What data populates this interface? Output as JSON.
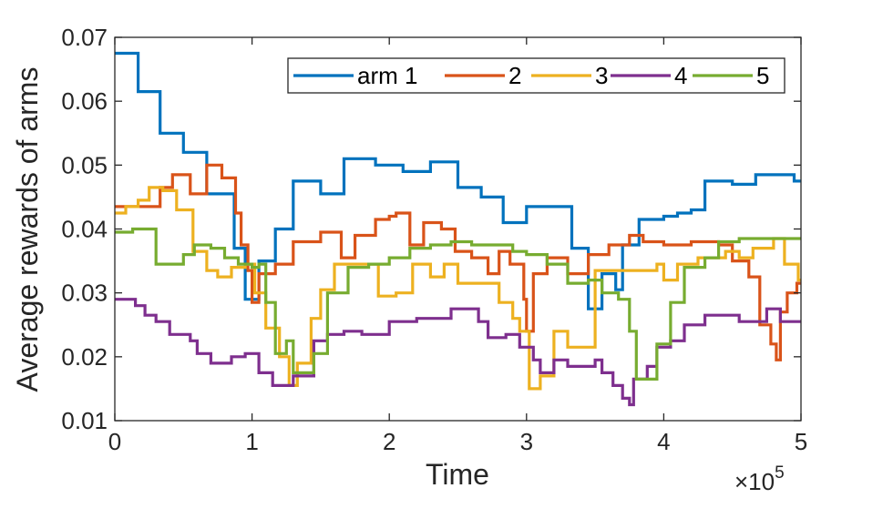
{
  "chart_data": {
    "type": "line",
    "step": true,
    "xlabel": "Time",
    "ylabel": "Average rewards of arms",
    "x_multiplier": "×10",
    "x_multiplier_exp": "5",
    "xlim": [
      0,
      5
    ],
    "ylim": [
      0.01,
      0.07
    ],
    "xticks": [
      0,
      1,
      2,
      3,
      4,
      5
    ],
    "xtick_labels": [
      "0",
      "1",
      "2",
      "3",
      "4",
      "5"
    ],
    "yticks": [
      0.01,
      0.02,
      0.03,
      0.04,
      0.05,
      0.06,
      0.07
    ],
    "ytick_labels": [
      "0.01",
      "0.02",
      "0.03",
      "0.04",
      "0.05",
      "0.06",
      "0.07"
    ],
    "grid": false,
    "legend_position": "top-right",
    "legend_orientation": "horizontal",
    "series": [
      {
        "name": "arm 1",
        "color": "#0072BD",
        "points": [
          [
            0,
            0.0675
          ],
          [
            0.17,
            0.0615
          ],
          [
            0.33,
            0.055
          ],
          [
            0.5,
            0.052
          ],
          [
            0.67,
            0.0455
          ],
          [
            0.87,
            0.037
          ],
          [
            0.95,
            0.029
          ],
          [
            1.05,
            0.035
          ],
          [
            1.17,
            0.04
          ],
          [
            1.3,
            0.0475
          ],
          [
            1.5,
            0.0455
          ],
          [
            1.67,
            0.051
          ],
          [
            1.9,
            0.05
          ],
          [
            2.1,
            0.049
          ],
          [
            2.3,
            0.0505
          ],
          [
            2.5,
            0.0465
          ],
          [
            2.67,
            0.045
          ],
          [
            2.83,
            0.041
          ],
          [
            3.0,
            0.0435
          ],
          [
            3.33,
            0.037
          ],
          [
            3.45,
            0.0275
          ],
          [
            3.55,
            0.033
          ],
          [
            3.65,
            0.0305
          ],
          [
            3.7,
            0.0375
          ],
          [
            3.82,
            0.0415
          ],
          [
            4.0,
            0.042
          ],
          [
            4.1,
            0.0425
          ],
          [
            4.2,
            0.043
          ],
          [
            4.3,
            0.0475
          ],
          [
            4.5,
            0.047
          ],
          [
            4.67,
            0.0485
          ],
          [
            4.95,
            0.0475
          ]
        ],
        "end_x": 5.0
      },
      {
        "name": "2",
        "color": "#D95319",
        "points": [
          [
            0,
            0.0435
          ],
          [
            0.33,
            0.0465
          ],
          [
            0.42,
            0.0485
          ],
          [
            0.55,
            0.0455
          ],
          [
            0.67,
            0.05
          ],
          [
            0.78,
            0.048
          ],
          [
            0.88,
            0.0425
          ],
          [
            0.92,
            0.0375
          ],
          [
            0.97,
            0.0335
          ],
          [
            1.0,
            0.0285
          ],
          [
            1.05,
            0.033
          ],
          [
            1.17,
            0.0345
          ],
          [
            1.3,
            0.038
          ],
          [
            1.5,
            0.0395
          ],
          [
            1.65,
            0.0355
          ],
          [
            1.75,
            0.039
          ],
          [
            1.9,
            0.0415
          ],
          [
            2.0,
            0.042
          ],
          [
            2.05,
            0.0425
          ],
          [
            2.15,
            0.0375
          ],
          [
            2.25,
            0.041
          ],
          [
            2.38,
            0.04
          ],
          [
            2.48,
            0.0365
          ],
          [
            2.6,
            0.0355
          ],
          [
            2.72,
            0.033
          ],
          [
            2.8,
            0.0365
          ],
          [
            2.88,
            0.0345
          ],
          [
            2.98,
            0.029
          ],
          [
            3.0,
            0.024
          ],
          [
            3.05,
            0.033
          ],
          [
            3.15,
            0.0355
          ],
          [
            3.3,
            0.033
          ],
          [
            3.45,
            0.036
          ],
          [
            3.6,
            0.0375
          ],
          [
            3.75,
            0.039
          ],
          [
            3.85,
            0.038
          ],
          [
            4.0,
            0.0375
          ],
          [
            4.2,
            0.038
          ],
          [
            4.4,
            0.0375
          ],
          [
            4.5,
            0.035
          ],
          [
            4.62,
            0.0325
          ],
          [
            4.7,
            0.025
          ],
          [
            4.78,
            0.022
          ],
          [
            4.82,
            0.0195
          ],
          [
            4.85,
            0.027
          ],
          [
            4.9,
            0.03
          ],
          [
            4.97,
            0.0315
          ]
        ],
        "end_x": 5.0
      },
      {
        "name": "3",
        "color": "#EDB120",
        "points": [
          [
            0,
            0.0425
          ],
          [
            0.08,
            0.0435
          ],
          [
            0.17,
            0.0445
          ],
          [
            0.25,
            0.0465
          ],
          [
            0.35,
            0.046
          ],
          [
            0.45,
            0.043
          ],
          [
            0.57,
            0.0365
          ],
          [
            0.67,
            0.0335
          ],
          [
            0.75,
            0.0325
          ],
          [
            0.85,
            0.034
          ],
          [
            0.95,
            0.0345
          ],
          [
            1.02,
            0.03
          ],
          [
            1.1,
            0.0245
          ],
          [
            1.2,
            0.02
          ],
          [
            1.27,
            0.0155
          ],
          [
            1.33,
            0.019
          ],
          [
            1.43,
            0.026
          ],
          [
            1.5,
            0.0305
          ],
          [
            1.6,
            0.0345
          ],
          [
            1.75,
            0.0345
          ],
          [
            1.92,
            0.0295
          ],
          [
            2.05,
            0.03
          ],
          [
            2.17,
            0.0345
          ],
          [
            2.3,
            0.0325
          ],
          [
            2.4,
            0.0345
          ],
          [
            2.5,
            0.0315
          ],
          [
            2.67,
            0.0315
          ],
          [
            2.8,
            0.0285
          ],
          [
            2.9,
            0.026
          ],
          [
            2.95,
            0.024
          ],
          [
            3.02,
            0.015
          ],
          [
            3.1,
            0.017
          ],
          [
            3.2,
            0.024
          ],
          [
            3.3,
            0.0215
          ],
          [
            3.38,
            0.0215
          ],
          [
            3.5,
            0.0335
          ],
          [
            3.62,
            0.0335
          ],
          [
            3.85,
            0.0335
          ],
          [
            3.95,
            0.0345
          ],
          [
            4.0,
            0.032
          ],
          [
            4.1,
            0.0345
          ],
          [
            4.25,
            0.0355
          ],
          [
            4.45,
            0.0365
          ],
          [
            4.55,
            0.0355
          ],
          [
            4.65,
            0.037
          ],
          [
            4.8,
            0.0385
          ],
          [
            4.88,
            0.0345
          ],
          [
            4.98,
            0.032
          ]
        ],
        "end_x": 5.0
      },
      {
        "name": "4",
        "color": "#7E2F8E",
        "points": [
          [
            0,
            0.029
          ],
          [
            0.15,
            0.028
          ],
          [
            0.22,
            0.0265
          ],
          [
            0.3,
            0.0255
          ],
          [
            0.4,
            0.0235
          ],
          [
            0.55,
            0.0225
          ],
          [
            0.6,
            0.0205
          ],
          [
            0.7,
            0.019
          ],
          [
            0.85,
            0.02
          ],
          [
            0.95,
            0.0205
          ],
          [
            1.05,
            0.0175
          ],
          [
            1.15,
            0.0155
          ],
          [
            1.3,
            0.017
          ],
          [
            1.45,
            0.0225
          ],
          [
            1.55,
            0.0235
          ],
          [
            1.67,
            0.024
          ],
          [
            1.8,
            0.0235
          ],
          [
            2.0,
            0.0255
          ],
          [
            2.2,
            0.026
          ],
          [
            2.45,
            0.0275
          ],
          [
            2.65,
            0.0255
          ],
          [
            2.72,
            0.023
          ],
          [
            2.85,
            0.0235
          ],
          [
            2.95,
            0.0215
          ],
          [
            3.05,
            0.0195
          ],
          [
            3.1,
            0.0175
          ],
          [
            3.2,
            0.0195
          ],
          [
            3.3,
            0.0185
          ],
          [
            3.5,
            0.0195
          ],
          [
            3.55,
            0.0175
          ],
          [
            3.63,
            0.0155
          ],
          [
            3.7,
            0.0135
          ],
          [
            3.75,
            0.0125
          ],
          [
            3.78,
            0.0165
          ],
          [
            3.88,
            0.0185
          ],
          [
            3.95,
            0.0215
          ],
          [
            4.05,
            0.0225
          ],
          [
            4.15,
            0.025
          ],
          [
            4.3,
            0.0265
          ],
          [
            4.45,
            0.0265
          ],
          [
            4.55,
            0.0255
          ],
          [
            4.75,
            0.0275
          ],
          [
            4.85,
            0.0255
          ]
        ],
        "end_x": 5.0
      },
      {
        "name": "5",
        "color": "#77AC30",
        "points": [
          [
            0,
            0.0395
          ],
          [
            0.13,
            0.04
          ],
          [
            0.3,
            0.0345
          ],
          [
            0.42,
            0.0345
          ],
          [
            0.5,
            0.036
          ],
          [
            0.58,
            0.0375
          ],
          [
            0.7,
            0.037
          ],
          [
            0.8,
            0.0355
          ],
          [
            0.9,
            0.0345
          ],
          [
            1.0,
            0.034
          ],
          [
            1.05,
            0.0345
          ],
          [
            1.1,
            0.0285
          ],
          [
            1.17,
            0.0205
          ],
          [
            1.25,
            0.0225
          ],
          [
            1.3,
            0.0175
          ],
          [
            1.45,
            0.0205
          ],
          [
            1.55,
            0.03
          ],
          [
            1.7,
            0.034
          ],
          [
            1.85,
            0.0345
          ],
          [
            2.0,
            0.0355
          ],
          [
            2.15,
            0.037
          ],
          [
            2.3,
            0.0375
          ],
          [
            2.45,
            0.038
          ],
          [
            2.6,
            0.0375
          ],
          [
            2.75,
            0.0375
          ],
          [
            2.9,
            0.0365
          ],
          [
            3.0,
            0.036
          ],
          [
            3.15,
            0.0345
          ],
          [
            3.3,
            0.0315
          ],
          [
            3.45,
            0.032
          ],
          [
            3.55,
            0.03
          ],
          [
            3.67,
            0.029
          ],
          [
            3.75,
            0.024
          ],
          [
            3.8,
            0.0165
          ],
          [
            3.95,
            0.022
          ],
          [
            4.05,
            0.0285
          ],
          [
            4.15,
            0.034
          ],
          [
            4.3,
            0.0355
          ],
          [
            4.4,
            0.038
          ],
          [
            4.55,
            0.0385
          ],
          [
            4.75,
            0.0385
          ]
        ],
        "end_x": 5.0
      }
    ]
  }
}
